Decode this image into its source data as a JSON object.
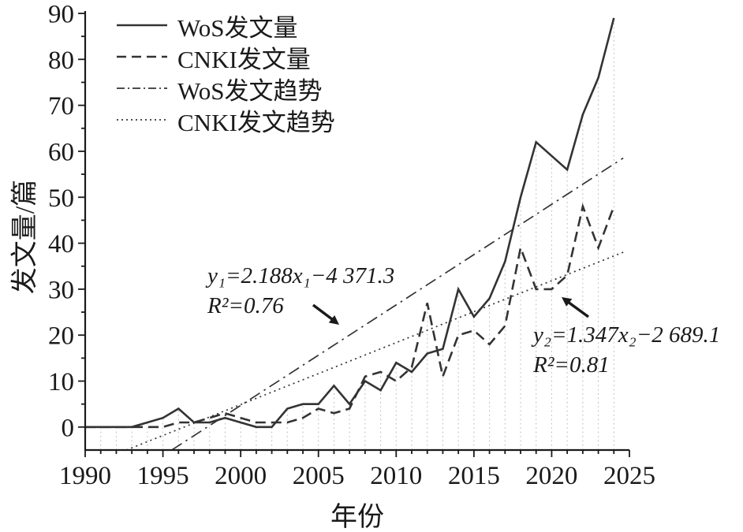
{
  "chart_data": {
    "type": "line",
    "title": "",
    "xlabel": "年份",
    "ylabel": "发文量/篇",
    "xlim": [
      1990,
      2025
    ],
    "ylim": [
      -5,
      90
    ],
    "grid": "vertical drop lines per year, light gray dotted",
    "legend_position": "top-left inside plot, no frame",
    "x_ticks": [
      1990,
      1995,
      2000,
      2005,
      2010,
      2015,
      2020,
      2025
    ],
    "y_ticks": [
      0,
      10,
      20,
      30,
      40,
      50,
      60,
      70,
      80,
      90
    ],
    "years": [
      1990,
      1991,
      1992,
      1993,
      1994,
      1995,
      1996,
      1997,
      1998,
      1999,
      2000,
      2001,
      2002,
      2003,
      2004,
      2005,
      2006,
      2007,
      2008,
      2009,
      2010,
      2011,
      2012,
      2013,
      2014,
      2015,
      2016,
      2017,
      2018,
      2019,
      2020,
      2021,
      2022,
      2023,
      2024
    ],
    "series": [
      {
        "name": "WoS发文量",
        "style": "solid",
        "values": [
          0,
          0,
          0,
          0,
          1,
          2,
          4,
          1,
          1,
          2,
          1,
          0,
          0,
          4,
          5,
          5,
          9,
          5,
          10,
          8,
          14,
          12,
          16,
          17,
          30,
          24,
          28,
          36,
          50,
          62,
          59,
          56,
          68,
          76,
          89
        ]
      },
      {
        "name": "CNKI发文量",
        "style": "dashed",
        "values": [
          0,
          0,
          0,
          0,
          0,
          0,
          1,
          1,
          2,
          3,
          2,
          1,
          1,
          1,
          2,
          4,
          3,
          4,
          11,
          12,
          10,
          13,
          27,
          11,
          20,
          21,
          18,
          22,
          39,
          30,
          30,
          33,
          48,
          39,
          48
        ]
      }
    ],
    "trends": [
      {
        "name": "WoS发文趋势",
        "style": "dashdot",
        "slope": 2.188,
        "intercept": -4371.3,
        "x_start": 1995.57,
        "x_end": 2024.6
      },
      {
        "name": "CNKI发文趋势",
        "style": "dotted",
        "slope": 1.347,
        "intercept": -2689.1,
        "x_start": 1992.65,
        "x_end": 2024.6
      }
    ],
    "legend": [
      "WoS发文量",
      "CNKI发文量",
      "WoS发文趋势",
      "CNKI发文趋势"
    ],
    "annotations": [
      {
        "line1": "y₁=2.188x₁−4 371.3",
        "line2": "R²=0.76",
        "arrow": "points down-right to WoS trend line"
      },
      {
        "line1": "y₂=1.347x₂−2 689.1",
        "line2": "R²=0.81",
        "arrow": "points up-left to CNKI trend line"
      }
    ],
    "colors": {
      "line": "#333333",
      "grid": "#c2c2c2",
      "text": "#1a1a1a"
    }
  }
}
